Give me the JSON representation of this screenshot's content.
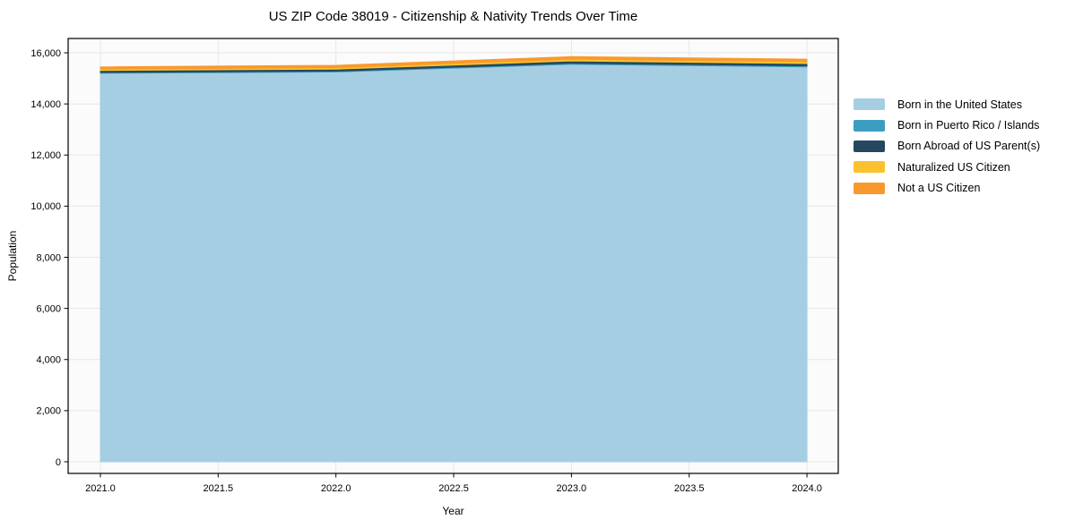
{
  "chart_data": {
    "type": "area",
    "stacked": true,
    "title": "US ZIP Code 38019 - Citizenship & Nativity Trends Over Time",
    "xlabel": "Year",
    "ylabel": "Population",
    "x": [
      2021,
      2022,
      2023,
      2024
    ],
    "series": [
      {
        "name": "Born in the United States",
        "color": "#a6cee3",
        "values": [
          15200,
          15250,
          15550,
          15450
        ]
      },
      {
        "name": "Born in Puerto Rico / Islands",
        "color": "#3d9dc1",
        "values": [
          30,
          30,
          40,
          40
        ]
      },
      {
        "name": "Born Abroad of US Parent(s)",
        "color": "#25485e",
        "values": [
          80,
          80,
          90,
          90
        ]
      },
      {
        "name": "Naturalized US Citizen",
        "color": "#fcc22d",
        "values": [
          50,
          60,
          70,
          80
        ]
      },
      {
        "name": "Not a US Citizen",
        "color": "#f8992e",
        "values": [
          90,
          90,
          100,
          90
        ]
      }
    ],
    "totals": [
      15450,
      15510,
      15850,
      15750
    ],
    "xticks": [
      2021.0,
      2021.5,
      2022.0,
      2022.5,
      2023.0,
      2023.5,
      2024.0
    ],
    "xtick_labels": [
      "2021.0",
      "2021.5",
      "2022.0",
      "2022.5",
      "2023.0",
      "2023.5",
      "2024.0"
    ],
    "yticks": [
      0,
      2000,
      4000,
      6000,
      8000,
      10000,
      12000,
      14000,
      16000
    ],
    "ytick_labels": [
      "0",
      "2,000",
      "4,000",
      "6,000",
      "8,000",
      "10,000",
      "12,000",
      "14,000",
      "16,000"
    ],
    "xlim": [
      2020.863,
      2024.133
    ],
    "ylim": [
      -455,
      16560
    ],
    "grid": true,
    "grid_color": "#e7e7e7",
    "plot_bg": "#fbfbfb",
    "frame_color": "#000000",
    "legend_position": "right"
  }
}
